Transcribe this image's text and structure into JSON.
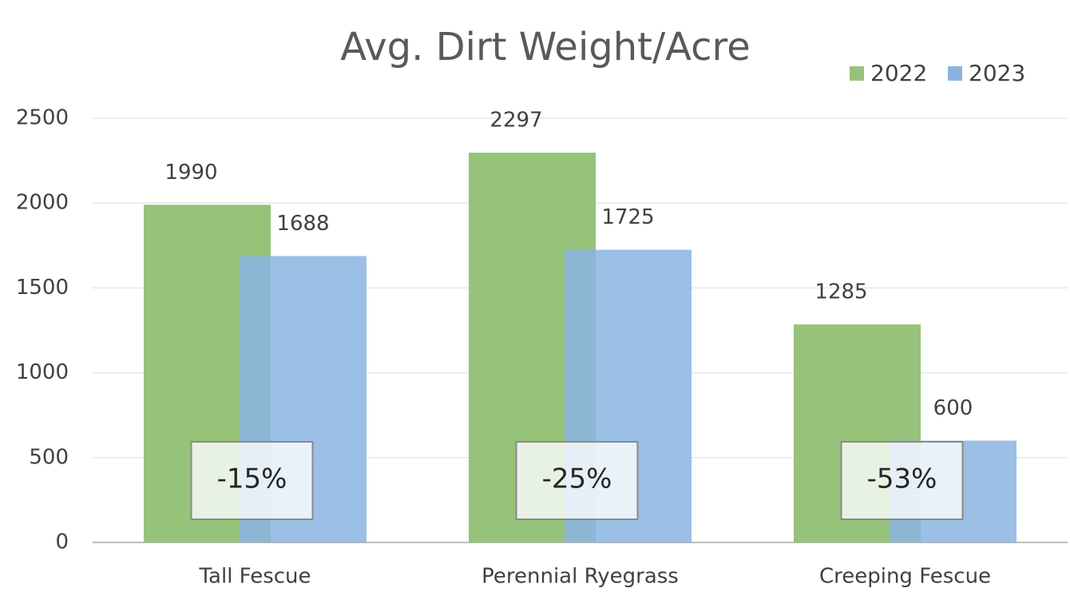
{
  "chart_data": {
    "type": "bar",
    "title": "Avg. Dirt Weight/Acre",
    "categories": [
      "Tall Fescue",
      "Perennial Ryegrass",
      "Creeping Fescue"
    ],
    "series": [
      {
        "name": "2022",
        "color": "#97c27a",
        "values": [
          1990,
          2297,
          1285
        ]
      },
      {
        "name": "2023",
        "color": "#8ab4e0",
        "values": [
          1688,
          1725,
          600
        ]
      }
    ],
    "annotations": [
      "-15%",
      "-25%",
      "-53%"
    ],
    "ylim": [
      0,
      2500
    ],
    "yticks": [
      0,
      500,
      1000,
      1500,
      2000,
      2500
    ],
    "grid": true,
    "legend": "top-right"
  }
}
